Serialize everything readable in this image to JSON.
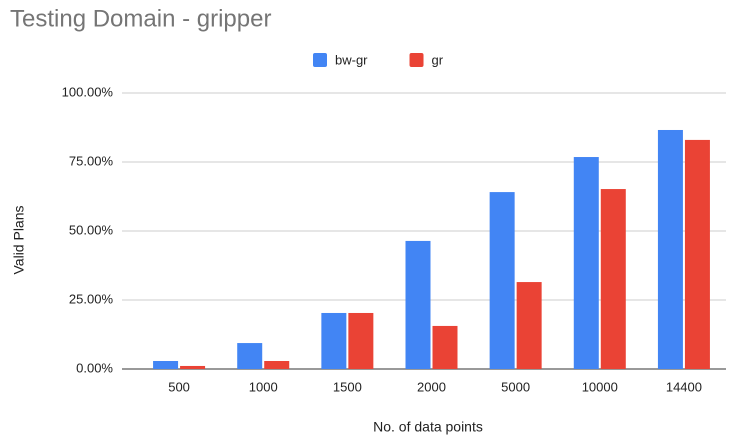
{
  "chart_data": {
    "type": "bar",
    "title": "Testing Domain - gripper",
    "x_label": "No. of data points",
    "y_label": "Valid Plans",
    "categories": [
      "500",
      "1000",
      "1500",
      "2000",
      "5000",
      "10000",
      "14400"
    ],
    "series": [
      {
        "name": "bw-gr",
        "color": "#4285f4",
        "values": [
          2.9,
          9.4,
          20.3,
          46.4,
          64.1,
          76.8,
          86.6
        ]
      },
      {
        "name": "gr",
        "color": "#ea4335",
        "values": [
          1.1,
          2.9,
          20.3,
          15.6,
          31.5,
          65.2,
          83.0
        ]
      }
    ],
    "ylim": [
      0,
      100
    ],
    "yticks": [
      {
        "value": 0,
        "label": "0.00%"
      },
      {
        "value": 25,
        "label": "25.00%"
      },
      {
        "value": 50,
        "label": "50.00%"
      },
      {
        "value": 75,
        "label": "75.00%"
      },
      {
        "value": 100,
        "label": "100.00%"
      }
    ],
    "grid": true,
    "legend": "top"
  }
}
